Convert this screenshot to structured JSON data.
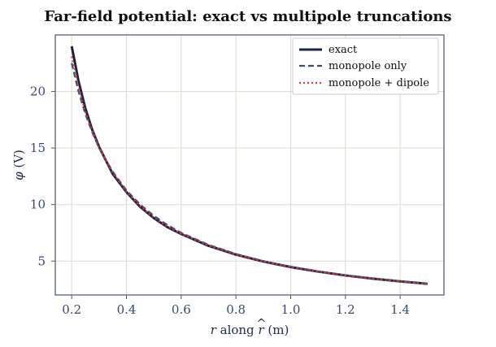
{
  "chart_data": {
    "type": "line",
    "title": "Far-field potential: exact vs multipole truncations",
    "xlabel_var": "r",
    "xlabel_mid": " along ",
    "xlabel_hat": "r",
    "xlabel_unit": " (m)",
    "ylabel_var": "φ",
    "ylabel_unit": " (V)",
    "xlim": [
      0.14,
      1.56
    ],
    "ylim": [
      2.0,
      25.0
    ],
    "xticks": [
      0.2,
      0.4,
      0.6,
      0.8,
      1.0,
      1.2,
      1.4
    ],
    "xtick_labels": [
      "0.2",
      "0.4",
      "0.6",
      "0.8",
      "1.0",
      "1.2",
      "1.4"
    ],
    "yticks": [
      5,
      10,
      15,
      20
    ],
    "ytick_labels": [
      "5",
      "10",
      "15",
      "20"
    ],
    "grid": true,
    "legend_position": "top-right",
    "x": [
      0.2,
      0.225,
      0.25,
      0.275,
      0.3,
      0.35,
      0.4,
      0.45,
      0.5,
      0.55,
      0.6,
      0.7,
      0.8,
      0.9,
      1.0,
      1.1,
      1.2,
      1.3,
      1.4,
      1.5
    ],
    "series": [
      {
        "name": "exact",
        "color": "#1b2340",
        "style": "solid",
        "values": [
          24.0,
          20.9,
          18.5,
          16.6,
          15.1,
          12.7,
          11.1,
          9.8,
          8.8,
          8.0,
          7.4,
          6.35,
          5.57,
          4.96,
          4.47,
          4.07,
          3.73,
          3.45,
          3.2,
          2.99
        ]
      },
      {
        "name": "monopole only",
        "color": "#3f4b6e",
        "style": "dashed",
        "values": [
          22.5,
          20.0,
          18.0,
          16.4,
          15.0,
          12.9,
          11.25,
          10.0,
          9.0,
          8.18,
          7.5,
          6.43,
          5.63,
          5.0,
          4.5,
          4.09,
          3.75,
          3.46,
          3.21,
          3.0
        ]
      },
      {
        "name": "monopole + dipole",
        "color": "#d43a3a",
        "style": "dotted",
        "values": [
          23.1,
          20.4,
          18.2,
          16.5,
          15.05,
          12.8,
          11.15,
          9.85,
          8.85,
          8.05,
          7.42,
          6.37,
          5.58,
          4.97,
          4.48,
          4.08,
          3.74,
          3.45,
          3.2,
          2.99
        ]
      }
    ]
  }
}
